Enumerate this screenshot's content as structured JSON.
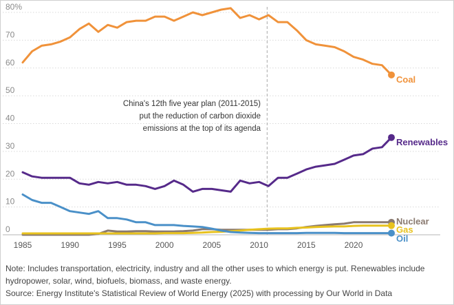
{
  "chart_data": {
    "type": "line",
    "x": [
      1985,
      1986,
      1987,
      1988,
      1989,
      1990,
      1991,
      1992,
      1993,
      1994,
      1995,
      1996,
      1997,
      1998,
      1999,
      2000,
      2001,
      2002,
      2003,
      2004,
      2005,
      2006,
      2007,
      2008,
      2009,
      2010,
      2011,
      2012,
      2013,
      2014,
      2015,
      2016,
      2017,
      2018,
      2019,
      2020,
      2021,
      2022,
      2023,
      2024
    ],
    "ylim": [
      0,
      80
    ],
    "xlim": [
      1985,
      2024
    ],
    "y_ticks": [
      0,
      10,
      20,
      30,
      40,
      50,
      60,
      70,
      80
    ],
    "y_tick_labels": [
      "0",
      "10",
      "20",
      "30",
      "40",
      "50",
      "60",
      "70",
      "80%"
    ],
    "x_ticks": [
      1985,
      1990,
      1995,
      2000,
      2005,
      2010,
      2015,
      2020
    ],
    "x_tick_labels": [
      "1985",
      "1990",
      "1995",
      "2000",
      "2005",
      "2010",
      "2015",
      "2020"
    ],
    "grid": "horizontal dotted",
    "series": [
      {
        "name": "Coal",
        "color": "#f0923a",
        "values": [
          62,
          66,
          68,
          68.5,
          69.5,
          71,
          74,
          76,
          73,
          75.5,
          74.5,
          76.5,
          77,
          77,
          78.5,
          78.5,
          77,
          78.5,
          80,
          79,
          80,
          81,
          81.5,
          78,
          79,
          77.5,
          79,
          76.5,
          76.5,
          73.5,
          70,
          68.5,
          68,
          67.5,
          66,
          64,
          63,
          61.5,
          61,
          57.5
        ]
      },
      {
        "name": "Renewables",
        "color": "#562a8a",
        "values": [
          22.5,
          21,
          20.5,
          20.5,
          20.5,
          20.5,
          18.5,
          18,
          19,
          18.5,
          19,
          18,
          18,
          17.5,
          16.5,
          17.5,
          19.5,
          18,
          15.5,
          16.5,
          16.5,
          16,
          15.5,
          19.5,
          18.5,
          19,
          17.5,
          20.5,
          20.5,
          22,
          23.5,
          24.5,
          25,
          25.5,
          27,
          28.5,
          29,
          31,
          31.5,
          35
        ]
      },
      {
        "name": "Nuclear",
        "color": "#8a7a70",
        "values": [
          0,
          0,
          0,
          0,
          0,
          0,
          0,
          0,
          0.3,
          1.5,
          1.2,
          1.2,
          1.3,
          1.3,
          1.2,
          1.2,
          1.2,
          1.3,
          1.5,
          2,
          2,
          1.8,
          1.8,
          1.8,
          1.8,
          1.8,
          1.8,
          2,
          2,
          2.3,
          2.8,
          3.2,
          3.5,
          3.8,
          4,
          4.5,
          4.5,
          4.5,
          4.5,
          4.5
        ]
      },
      {
        "name": "Gas",
        "color": "#e8c21e",
        "values": [
          0.5,
          0.5,
          0.5,
          0.5,
          0.5,
          0.5,
          0.5,
          0.5,
          0.5,
          0.5,
          0.5,
          0.5,
          0.5,
          0.5,
          0.5,
          0.6,
          0.6,
          0.6,
          0.7,
          0.8,
          1,
          1.1,
          1.3,
          1.5,
          1.8,
          2,
          2.2,
          2.3,
          2.3,
          2.5,
          2.6,
          2.8,
          2.9,
          3,
          3,
          3.2,
          3.3,
          3.3,
          3.3,
          3.3
        ]
      },
      {
        "name": "Oil",
        "color": "#4a90c8",
        "values": [
          14.5,
          12.5,
          11.5,
          11.5,
          10,
          8.5,
          8,
          7.5,
          8.5,
          6,
          6,
          5.5,
          4.5,
          4.5,
          3.5,
          3.5,
          3.5,
          3.2,
          3,
          2.8,
          2.2,
          1.5,
          1,
          0.8,
          0.7,
          0.6,
          0.6,
          0.6,
          0.6,
          0.6,
          0.7,
          0.7,
          0.7,
          0.7,
          0.6,
          0.6,
          0.6,
          0.6,
          0.6,
          0.6
        ]
      }
    ],
    "annotation": {
      "x": 2011,
      "lines": [
        "China's 12th five year plan (2011-2015)",
        "put the reduction of carbon dioxide",
        "emissions at the top of its agenda"
      ]
    }
  },
  "notes": {
    "note": "Note: Includes transportation, electricity, industry and all the other uses to which energy is put. Renewables include hydropower, solar, wind, biofuels, biomass, and waste energy.",
    "source": "Source: Energy Institute's Statistical Review of World Energy (2025) with processing by Our World in Data"
  }
}
